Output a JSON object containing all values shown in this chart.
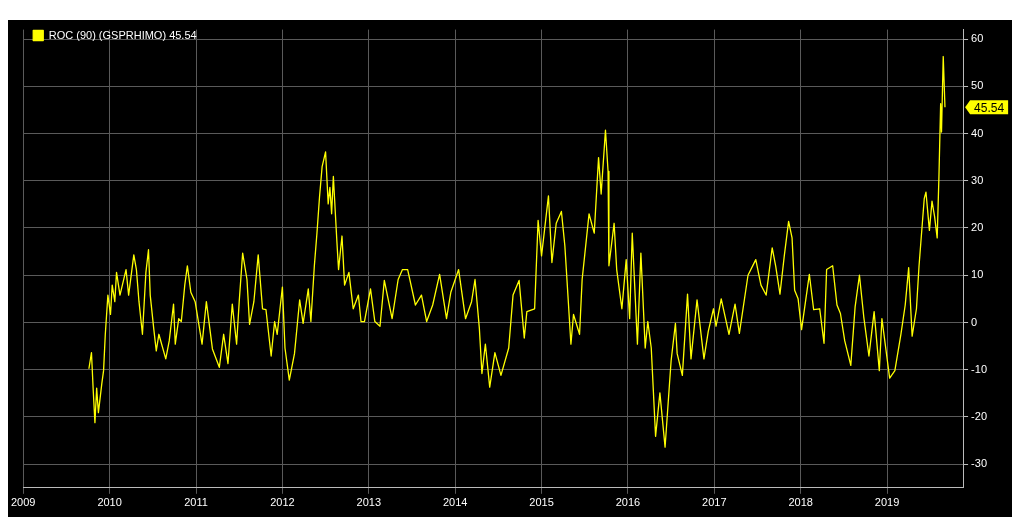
{
  "chart_data": {
    "type": "line",
    "legend": "top left",
    "grid": true,
    "marker": "none",
    "line_style": "solid",
    "xlim": [
      2009,
      2019.88
    ],
    "ylim": [
      -35,
      62
    ],
    "xticks": [
      2009,
      2010,
      2011,
      2012,
      2013,
      2014,
      2015,
      2016,
      2017,
      2018,
      2019
    ],
    "yticks": [
      -30,
      -20,
      -10,
      0,
      10,
      20,
      30,
      40,
      50,
      60
    ],
    "annotations": [
      "45.54"
    ],
    "series": [
      {
        "name": "ROC (90) (GSPRHIMO) 45.54",
        "color": "#ffff00",
        "x": [
          2009.76,
          2009.79,
          2009.81,
          2009.83,
          2009.85,
          2009.87,
          2009.91,
          2009.93,
          2009.95,
          2009.98,
          2010.01,
          2010.03,
          2010.06,
          2010.08,
          2010.12,
          2010.19,
          2010.22,
          2010.28,
          2010.31,
          2010.34,
          2010.38,
          2010.42,
          2010.45,
          2010.47,
          2010.51,
          2010.54,
          2010.57,
          2010.65,
          2010.69,
          2010.74,
          2010.76,
          2010.8,
          2010.83,
          2010.87,
          2010.9,
          2010.94,
          2010.99,
          2011.07,
          2011.12,
          2011.19,
          2011.27,
          2011.32,
          2011.37,
          2011.42,
          2011.47,
          2011.5,
          2011.54,
          2011.59,
          2011.62,
          2011.67,
          2011.72,
          2011.77,
          2011.81,
          2011.87,
          2011.91,
          2011.94,
          2012.0,
          2012.03,
          2012.08,
          2012.14,
          2012.2,
          2012.24,
          2012.3,
          2012.33,
          2012.37,
          2012.4,
          2012.43,
          2012.46,
          2012.5,
          2012.53,
          2012.55,
          2012.57,
          2012.59,
          2012.63,
          2012.65,
          2012.69,
          2012.72,
          2012.77,
          2012.82,
          2012.88,
          2012.91,
          2012.95,
          2013.02,
          2013.07,
          2013.13,
          2013.18,
          2013.27,
          2013.34,
          2013.39,
          2013.45,
          2013.54,
          2013.61,
          2013.67,
          2013.74,
          2013.82,
          2013.9,
          2013.95,
          2014.04,
          2014.12,
          2014.19,
          2014.23,
          2014.28,
          2014.31,
          2014.35,
          2014.4,
          2014.46,
          2014.53,
          2014.62,
          2014.67,
          2014.74,
          2014.8,
          2014.83,
          2014.92,
          2014.96,
          2015.0,
          2015.08,
          2015.12,
          2015.17,
          2015.23,
          2015.27,
          2015.31,
          2015.34,
          2015.37,
          2015.44,
          2015.47,
          2015.55,
          2015.61,
          2015.66,
          2015.69,
          2015.74,
          2015.77,
          2015.78,
          2015.84,
          2015.87,
          2015.93,
          2015.98,
          2016.02,
          2016.05,
          2016.11,
          2016.15,
          2016.2,
          2016.23,
          2016.27,
          2016.32,
          2016.37,
          2016.43,
          2016.48,
          2016.5,
          2016.55,
          2016.57,
          2016.63,
          2016.69,
          2016.73,
          2016.8,
          2016.88,
          2016.93,
          2016.99,
          2017.02,
          2017.08,
          2017.17,
          2017.24,
          2017.29,
          2017.39,
          2017.48,
          2017.54,
          2017.6,
          2017.67,
          2017.71,
          2017.76,
          2017.81,
          2017.86,
          2017.9,
          2017.93,
          2017.97,
          2018.01,
          2018.1,
          2018.15,
          2018.22,
          2018.27,
          2018.3,
          2018.37,
          2018.42,
          2018.46,
          2018.51,
          2018.58,
          2018.63,
          2018.68,
          2018.73,
          2018.79,
          2018.85,
          2018.91,
          2018.94,
          2019.03,
          2019.09,
          2019.16,
          2019.21,
          2019.25,
          2019.29,
          2019.34,
          2019.37,
          2019.43,
          2019.45,
          2019.49,
          2019.52,
          2019.55,
          2019.58,
          2019.6,
          2019.62,
          2019.63,
          2019.65,
          2019.67
        ],
        "values": [
          -9.8,
          -6.4,
          -14.3,
          -21.2,
          -13.9,
          -19.1,
          -12.9,
          -10.2,
          -2.5,
          5.8,
          1.7,
          7.9,
          4.4,
          10.6,
          5.8,
          11.2,
          5.8,
          14.3,
          11.2,
          4.4,
          -2.5,
          10.6,
          15.4,
          5.8,
          -1.2,
          -6.0,
          -2.5,
          -7.7,
          -3.9,
          3.9,
          -4.6,
          0.8,
          0.2,
          7.9,
          12.0,
          6.4,
          4.4,
          -4.6,
          4.4,
          -5.6,
          -9.5,
          -2.5,
          -8.7,
          3.9,
          -4.6,
          4.4,
          14.7,
          9.1,
          -0.4,
          4.4,
          14.3,
          2.9,
          2.7,
          -7.1,
          0.2,
          -2.5,
          7.5,
          -5.4,
          -12.2,
          -6.6,
          4.8,
          -0.2,
          7.1,
          0.2,
          12.0,
          18.9,
          26.6,
          33.0,
          36.1,
          25.1,
          28.6,
          23.0,
          30.9,
          17.4,
          11.2,
          18.3,
          7.9,
          10.6,
          2.9,
          5.8,
          0.2,
          0.2,
          7.1,
          0.2,
          -0.8,
          8.9,
          0.8,
          9.1,
          11.2,
          11.2,
          3.7,
          5.8,
          0.2,
          3.7,
          10.2,
          0.8,
          6.4,
          11.2,
          0.8,
          4.4,
          9.1,
          -1.2,
          -10.8,
          -4.6,
          -13.7,
          -6.4,
          -11.2,
          -5.4,
          5.8,
          8.9,
          -3.3,
          2.3,
          2.9,
          21.6,
          14.1,
          26.8,
          12.7,
          21.0,
          23.5,
          16.2,
          4.4,
          -4.6,
          1.7,
          -2.5,
          9.1,
          23.0,
          18.9,
          34.9,
          27.2,
          40.7,
          32.0,
          12.0,
          21.0,
          11.2,
          2.9,
          13.3,
          0.8,
          18.9,
          -4.6,
          14.7,
          -5.4,
          0.2,
          -5.4,
          -24.1,
          -14.9,
          -26.4,
          -13.3,
          -8.1,
          -0.2,
          -6.6,
          -11.2,
          6.0,
          -7.7,
          4.8,
          -7.7,
          -1.9,
          2.9,
          -0.8,
          5.0,
          -2.5,
          3.9,
          -2.3,
          10.0,
          13.3,
          7.9,
          5.8,
          15.8,
          12.0,
          6.0,
          14.1,
          21.4,
          17.9,
          6.8,
          5.0,
          -1.5,
          10.2,
          2.7,
          2.9,
          -4.4,
          11.2,
          12.0,
          3.7,
          1.9,
          -3.9,
          -9.1,
          3.3,
          10.0,
          1.2,
          -7.1,
          2.3,
          -10.2,
          0.8,
          -11.8,
          -10.2,
          -2.5,
          3.7,
          11.6,
          -2.9,
          2.9,
          12.0,
          26.2,
          27.6,
          19.5,
          25.7,
          22.4,
          17.9,
          30.7,
          46.3,
          40.3,
          56.3,
          45.54
        ]
      }
    ]
  }
}
